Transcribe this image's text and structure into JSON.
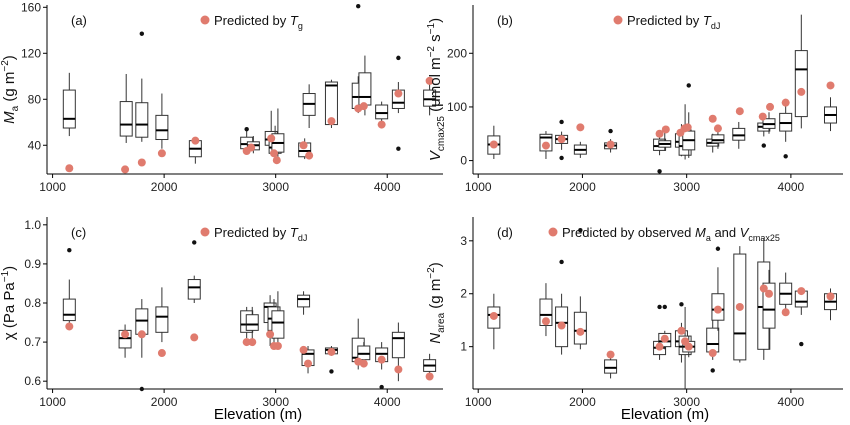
{
  "figure": {
    "x_axis_title": "Elevation (m)"
  },
  "colors": {
    "predicted": "#e07b6e",
    "box": "#333333",
    "axis": "#000000"
  },
  "chart_data": [
    {
      "id": "a",
      "type": "box",
      "panel_label": "(a)",
      "legend": {
        "text": "Predicted by T",
        "sub": "g",
        "placement": "top-center"
      },
      "ylabel": {
        "main": "M",
        "main_sub": "a",
        "unit": "(g m",
        "unit_sup": "−2",
        "unit_end": ")"
      },
      "xlim": [
        950,
        4500
      ],
      "ylim": [
        15,
        162
      ],
      "x_ticks": [
        1000,
        2000,
        3000,
        4000
      ],
      "y_ticks": [
        40,
        80,
        120,
        160
      ],
      "boxes": [
        {
          "x": 1150,
          "q1": 55,
          "med": 63,
          "q3": 88,
          "lo": 48,
          "hi": 103
        },
        {
          "x": 1660,
          "q1": 48,
          "med": 58,
          "q3": 78,
          "lo": 42,
          "hi": 102
        },
        {
          "x": 1800,
          "q1": 47,
          "med": 58,
          "q3": 77,
          "lo": 43,
          "hi": 98,
          "out": [
            137
          ]
        },
        {
          "x": 1980,
          "q1": 45,
          "med": 53,
          "q3": 66,
          "lo": 37,
          "hi": 85
        },
        {
          "x": 2280,
          "q1": 30,
          "med": 37,
          "q3": 44,
          "lo": 24,
          "hi": 45
        },
        {
          "x": 2740,
          "q1": 37,
          "med": 41,
          "q3": 47,
          "lo": 32,
          "hi": 55,
          "out": [
            54
          ]
        },
        {
          "x": 2800,
          "q1": 36,
          "med": 40,
          "q3": 43,
          "lo": 33,
          "hi": 48
        },
        {
          "x": 2960,
          "q1": 40,
          "med": 45,
          "q3": 52,
          "lo": 33,
          "hi": 70
        },
        {
          "x": 2995,
          "q1": 33,
          "med": 38,
          "q3": 45,
          "lo": 26,
          "hi": 57
        },
        {
          "x": 3020,
          "q1": 34,
          "med": 42,
          "q3": 50,
          "lo": 28,
          "hi": 72
        },
        {
          "x": 3260,
          "q1": 30,
          "med": 35,
          "q3": 42,
          "lo": 28,
          "hi": 46
        },
        {
          "x": 3300,
          "q1": 66,
          "med": 76,
          "q3": 85,
          "lo": 55,
          "hi": 93
        },
        {
          "x": 3500,
          "q1": 58,
          "med": 92,
          "q3": 95,
          "lo": 55,
          "hi": 97
        },
        {
          "x": 3740,
          "q1": 72,
          "med": 82,
          "q3": 94,
          "lo": 68,
          "hi": 100,
          "out": [
            161
          ]
        },
        {
          "x": 3800,
          "q1": 75,
          "med": 82,
          "q3": 103,
          "lo": 66,
          "hi": 118
        },
        {
          "x": 3950,
          "q1": 63,
          "med": 68,
          "q3": 75,
          "lo": 58,
          "hi": 78
        },
        {
          "x": 4100,
          "q1": 72,
          "med": 77,
          "q3": 88,
          "lo": 68,
          "hi": 95,
          "out": [
            37,
            116
          ]
        },
        {
          "x": 4380,
          "q1": 74,
          "med": 80,
          "q3": 88,
          "lo": 66,
          "hi": 95
        }
      ],
      "points": [
        {
          "x": 1150,
          "y": 20
        },
        {
          "x": 1650,
          "y": 19
        },
        {
          "x": 1800,
          "y": 25
        },
        {
          "x": 1980,
          "y": 33
        },
        {
          "x": 2280,
          "y": 44
        },
        {
          "x": 2740,
          "y": 35
        },
        {
          "x": 2780,
          "y": 38
        },
        {
          "x": 2960,
          "y": 46
        },
        {
          "x": 2985,
          "y": 33
        },
        {
          "x": 3010,
          "y": 27
        },
        {
          "x": 3250,
          "y": 40
        },
        {
          "x": 3300,
          "y": 31
        },
        {
          "x": 3500,
          "y": 61
        },
        {
          "x": 3740,
          "y": 72
        },
        {
          "x": 3790,
          "y": 74
        },
        {
          "x": 3950,
          "y": 58
        },
        {
          "x": 4100,
          "y": 85
        },
        {
          "x": 4380,
          "y": 96
        }
      ]
    },
    {
      "id": "b",
      "type": "box",
      "panel_label": "(b)",
      "legend": {
        "text": "Predicted by T",
        "sub": "dJ",
        "placement": "top-center"
      },
      "ylabel": {
        "main": "V",
        "main_sub": "cmax25",
        "unit": "(μmol m",
        "unit_sup": "−2",
        "unit_mid": " s",
        "unit_sup2": "−1",
        "unit_end": ")"
      },
      "xlim": [
        950,
        4500
      ],
      "ylim": [
        -25,
        290
      ],
      "x_ticks": [
        1000,
        2000,
        3000,
        4000
      ],
      "y_ticks": [
        0,
        100,
        200
      ],
      "boxes": [
        {
          "x": 1150,
          "q1": 12,
          "med": 30,
          "q3": 46,
          "lo": 3,
          "hi": 65
        },
        {
          "x": 1650,
          "q1": 18,
          "med": 43,
          "q3": 49,
          "lo": 3,
          "hi": 55
        },
        {
          "x": 1800,
          "q1": 32,
          "med": 40,
          "q3": 47,
          "lo": 20,
          "hi": 54,
          "out": [
            5,
            72
          ]
        },
        {
          "x": 1980,
          "q1": 12,
          "med": 20,
          "q3": 29,
          "lo": 5,
          "hi": 35
        },
        {
          "x": 2270,
          "q1": 22,
          "med": 28,
          "q3": 33,
          "lo": 15,
          "hi": 40,
          "out": [
            55
          ]
        },
        {
          "x": 2740,
          "q1": 19,
          "med": 27,
          "q3": 40,
          "lo": 10,
          "hi": 52,
          "out": [
            -20
          ]
        },
        {
          "x": 2790,
          "q1": 25,
          "med": 31,
          "q3": 37,
          "lo": 18,
          "hi": 55
        },
        {
          "x": 2950,
          "q1": 25,
          "med": 35,
          "q3": 50,
          "lo": 8,
          "hi": 68
        },
        {
          "x": 2985,
          "q1": 10,
          "med": 27,
          "q3": 57,
          "lo": 2,
          "hi": 105
        },
        {
          "x": 3020,
          "q1": 20,
          "med": 38,
          "q3": 55,
          "lo": 5,
          "hi": 90,
          "out": [
            140
          ]
        },
        {
          "x": 3250,
          "q1": 27,
          "med": 33,
          "q3": 40,
          "lo": 15,
          "hi": 50
        },
        {
          "x": 3300,
          "q1": 33,
          "med": 38,
          "q3": 48,
          "lo": 22,
          "hi": 60
        },
        {
          "x": 3500,
          "q1": 38,
          "med": 47,
          "q3": 60,
          "lo": 22,
          "hi": 72
        },
        {
          "x": 3740,
          "q1": 55,
          "med": 63,
          "q3": 70,
          "lo": 45,
          "hi": 80,
          "out": [
            28
          ]
        },
        {
          "x": 3790,
          "q1": 60,
          "med": 68,
          "q3": 78,
          "lo": 50,
          "hi": 90
        },
        {
          "x": 3950,
          "q1": 55,
          "med": 70,
          "q3": 88,
          "lo": 35,
          "hi": 115,
          "out": [
            8
          ]
        },
        {
          "x": 4100,
          "q1": 82,
          "med": 170,
          "q3": 205,
          "lo": 60,
          "hi": 272
        },
        {
          "x": 4380,
          "q1": 70,
          "med": 85,
          "q3": 100,
          "lo": 55,
          "hi": 118
        }
      ],
      "points": [
        {
          "x": 1150,
          "y": 30
        },
        {
          "x": 1650,
          "y": 28
        },
        {
          "x": 1800,
          "y": 40
        },
        {
          "x": 1980,
          "y": 62
        },
        {
          "x": 2270,
          "y": 30
        },
        {
          "x": 2740,
          "y": 50
        },
        {
          "x": 2800,
          "y": 58
        },
        {
          "x": 2940,
          "y": 52
        },
        {
          "x": 2980,
          "y": 60
        },
        {
          "x": 3010,
          "y": 62
        },
        {
          "x": 3250,
          "y": 78
        },
        {
          "x": 3300,
          "y": 60
        },
        {
          "x": 3510,
          "y": 92
        },
        {
          "x": 3730,
          "y": 82
        },
        {
          "x": 3800,
          "y": 100
        },
        {
          "x": 3950,
          "y": 108
        },
        {
          "x": 4100,
          "y": 128
        },
        {
          "x": 4380,
          "y": 140
        }
      ]
    },
    {
      "id": "c",
      "type": "box",
      "panel_label": "(c)",
      "legend": {
        "text": "Predicted by T",
        "sub": "dJ",
        "placement": "top-center"
      },
      "ylabel": {
        "main": "χ",
        "unit": "(Pa Pa",
        "unit_sup": "−1",
        "unit_end": ")"
      },
      "xlim": [
        950,
        4500
      ],
      "ylim": [
        0.58,
        1.02
      ],
      "x_ticks": [
        1000,
        2000,
        3000,
        4000
      ],
      "y_ticks": [
        0.6,
        0.7,
        0.8,
        0.9,
        1.0
      ],
      "y_decimals": 1,
      "boxes": [
        {
          "x": 1150,
          "q1": 0.755,
          "med": 0.77,
          "q3": 0.81,
          "lo": 0.745,
          "hi": 0.86,
          "out": [
            0.935
          ]
        },
        {
          "x": 1650,
          "q1": 0.685,
          "med": 0.71,
          "q3": 0.73,
          "lo": 0.66,
          "hi": 0.745
        },
        {
          "x": 1800,
          "q1": 0.72,
          "med": 0.755,
          "q3": 0.785,
          "lo": 0.66,
          "hi": 0.81,
          "out": [
            0.58
          ]
        },
        {
          "x": 1980,
          "q1": 0.725,
          "med": 0.765,
          "q3": 0.79,
          "lo": 0.7,
          "hi": 0.84
        },
        {
          "x": 2270,
          "q1": 0.81,
          "med": 0.84,
          "q3": 0.86,
          "lo": 0.8,
          "hi": 0.87,
          "out": [
            0.955
          ]
        },
        {
          "x": 2740,
          "q1": 0.725,
          "med": 0.745,
          "q3": 0.78,
          "lo": 0.71,
          "hi": 0.79
        },
        {
          "x": 2790,
          "q1": 0.73,
          "med": 0.745,
          "q3": 0.77,
          "lo": 0.7,
          "hi": 0.79
        },
        {
          "x": 2950,
          "q1": 0.75,
          "med": 0.79,
          "q3": 0.8,
          "lo": 0.69,
          "hi": 0.82
        },
        {
          "x": 2985,
          "q1": 0.73,
          "med": 0.76,
          "q3": 0.79,
          "lo": 0.69,
          "hi": 0.81
        },
        {
          "x": 3020,
          "q1": 0.71,
          "med": 0.75,
          "q3": 0.78,
          "lo": 0.69,
          "hi": 0.83
        },
        {
          "x": 3250,
          "q1": 0.79,
          "med": 0.81,
          "q3": 0.82,
          "lo": 0.77,
          "hi": 0.83
        },
        {
          "x": 3290,
          "q1": 0.64,
          "med": 0.67,
          "q3": 0.68,
          "lo": 0.62,
          "hi": 0.69
        },
        {
          "x": 3500,
          "q1": 0.67,
          "med": 0.68,
          "q3": 0.685,
          "lo": 0.665,
          "hi": 0.69,
          "out": [
            0.625
          ]
        },
        {
          "x": 3740,
          "q1": 0.65,
          "med": 0.66,
          "q3": 0.71,
          "lo": 0.63,
          "hi": 0.76
        },
        {
          "x": 3790,
          "q1": 0.655,
          "med": 0.67,
          "q3": 0.69,
          "lo": 0.64,
          "hi": 0.7
        },
        {
          "x": 3950,
          "q1": 0.65,
          "med": 0.67,
          "q3": 0.685,
          "lo": 0.63,
          "hi": 0.7,
          "out": [
            0.585
          ]
        },
        {
          "x": 4100,
          "q1": 0.66,
          "med": 0.71,
          "q3": 0.725,
          "lo": 0.6,
          "hi": 0.75
        },
        {
          "x": 4380,
          "q1": 0.625,
          "med": 0.64,
          "q3": 0.655,
          "lo": 0.615,
          "hi": 0.67
        }
      ],
      "points": [
        {
          "x": 1150,
          "y": 0.74
        },
        {
          "x": 1650,
          "y": 0.72
        },
        {
          "x": 1800,
          "y": 0.72
        },
        {
          "x": 1980,
          "y": 0.672
        },
        {
          "x": 2270,
          "y": 0.712
        },
        {
          "x": 2740,
          "y": 0.7
        },
        {
          "x": 2790,
          "y": 0.7
        },
        {
          "x": 2950,
          "y": 0.72
        },
        {
          "x": 2985,
          "y": 0.69
        },
        {
          "x": 3020,
          "y": 0.69
        },
        {
          "x": 3250,
          "y": 0.68
        },
        {
          "x": 3290,
          "y": 0.645
        },
        {
          "x": 3500,
          "y": 0.675
        },
        {
          "x": 3740,
          "y": 0.65
        },
        {
          "x": 3790,
          "y": 0.645
        },
        {
          "x": 3950,
          "y": 0.655
        },
        {
          "x": 4100,
          "y": 0.63
        },
        {
          "x": 4380,
          "y": 0.612
        }
      ]
    },
    {
      "id": "d",
      "type": "box",
      "panel_label": "(d)",
      "legend": {
        "text": "Predicted by observed M",
        "sub": "a",
        "text2": " and V",
        "sub2": "cmax25",
        "placement": "top-center"
      },
      "ylabel": {
        "main": "N",
        "main_sub": "area",
        "unit": "(g m",
        "unit_sup": "−2",
        "unit_end": ")"
      },
      "xlim": [
        950,
        4500
      ],
      "ylim": [
        0.2,
        3.45
      ],
      "x_ticks": [
        1000,
        2000,
        3000,
        4000
      ],
      "y_ticks": [
        1,
        2,
        3
      ],
      "boxes": [
        {
          "x": 1150,
          "q1": 1.35,
          "med": 1.6,
          "q3": 1.75,
          "lo": 0.95,
          "hi": 2.0
        },
        {
          "x": 1650,
          "q1": 1.4,
          "med": 1.6,
          "q3": 1.9,
          "lo": 1.2,
          "hi": 2.2
        },
        {
          "x": 1800,
          "q1": 1.0,
          "med": 1.45,
          "q3": 1.75,
          "lo": 0.85,
          "hi": 2.0,
          "out": [
            2.6
          ]
        },
        {
          "x": 1980,
          "q1": 1.05,
          "med": 1.3,
          "q3": 1.65,
          "lo": 0.95,
          "hi": 1.95,
          "out": [
            3.2
          ]
        },
        {
          "x": 2270,
          "q1": 0.5,
          "med": 0.6,
          "q3": 0.75,
          "lo": 0.4,
          "hi": 0.8
        },
        {
          "x": 2740,
          "q1": 0.85,
          "med": 0.98,
          "q3": 1.1,
          "lo": 0.75,
          "hi": 1.2,
          "out": [
            1.75
          ]
        },
        {
          "x": 2790,
          "q1": 1.0,
          "med": 1.1,
          "q3": 1.25,
          "lo": 0.95,
          "hi": 1.3,
          "out": [
            1.75
          ]
        },
        {
          "x": 2950,
          "q1": 1.0,
          "med": 1.1,
          "q3": 1.3,
          "lo": 0.7,
          "hi": 1.45,
          "out": [
            1.8
          ]
        },
        {
          "x": 2985,
          "q1": 0.85,
          "med": 1.0,
          "q3": 1.2,
          "lo": 0.2,
          "hi": 1.75
        },
        {
          "x": 3020,
          "q1": 0.9,
          "med": 1.0,
          "q3": 1.1,
          "lo": 0.8,
          "hi": 1.2
        },
        {
          "x": 3250,
          "q1": 0.9,
          "med": 1.05,
          "q3": 1.35,
          "lo": 0.75,
          "hi": 1.5,
          "out": [
            0.55
          ]
        },
        {
          "x": 3300,
          "q1": 1.5,
          "med": 1.7,
          "q3": 2.0,
          "lo": 1.3,
          "hi": 2.5,
          "out": [
            2.85
          ]
        },
        {
          "x": 3510,
          "q1": 0.75,
          "med": 1.25,
          "q3": 2.75,
          "lo": 0.7,
          "hi": 2.9
        },
        {
          "x": 3740,
          "q1": 0.95,
          "med": 1.75,
          "q3": 2.6,
          "lo": 0.75,
          "hi": 3.05
        },
        {
          "x": 3790,
          "q1": 1.35,
          "med": 1.7,
          "q3": 2.2,
          "lo": 0.95,
          "hi": 2.45
        },
        {
          "x": 3950,
          "q1": 1.8,
          "med": 2.0,
          "q3": 2.2,
          "lo": 1.6,
          "hi": 2.4
        },
        {
          "x": 4100,
          "q1": 1.75,
          "med": 1.85,
          "q3": 2.05,
          "lo": 1.6,
          "hi": 2.1,
          "out": [
            1.05
          ]
        },
        {
          "x": 4380,
          "q1": 1.7,
          "med": 1.85,
          "q3": 2.0,
          "lo": 1.5,
          "hi": 2.1
        }
      ],
      "points": [
        {
          "x": 1150,
          "y": 1.58
        },
        {
          "x": 1650,
          "y": 1.48
        },
        {
          "x": 1800,
          "y": 1.4
        },
        {
          "x": 1980,
          "y": 1.28
        },
        {
          "x": 2270,
          "y": 0.85
        },
        {
          "x": 2740,
          "y": 1.0
        },
        {
          "x": 2790,
          "y": 1.15
        },
        {
          "x": 2950,
          "y": 1.3
        },
        {
          "x": 2985,
          "y": 1.1
        },
        {
          "x": 3020,
          "y": 1.0
        },
        {
          "x": 3250,
          "y": 0.88
        },
        {
          "x": 3300,
          "y": 1.7
        },
        {
          "x": 3510,
          "y": 1.75
        },
        {
          "x": 3740,
          "y": 2.1
        },
        {
          "x": 3790,
          "y": 2.0
        },
        {
          "x": 3950,
          "y": 1.65
        },
        {
          "x": 4100,
          "y": 2.05
        },
        {
          "x": 4380,
          "y": 1.95
        }
      ]
    }
  ]
}
